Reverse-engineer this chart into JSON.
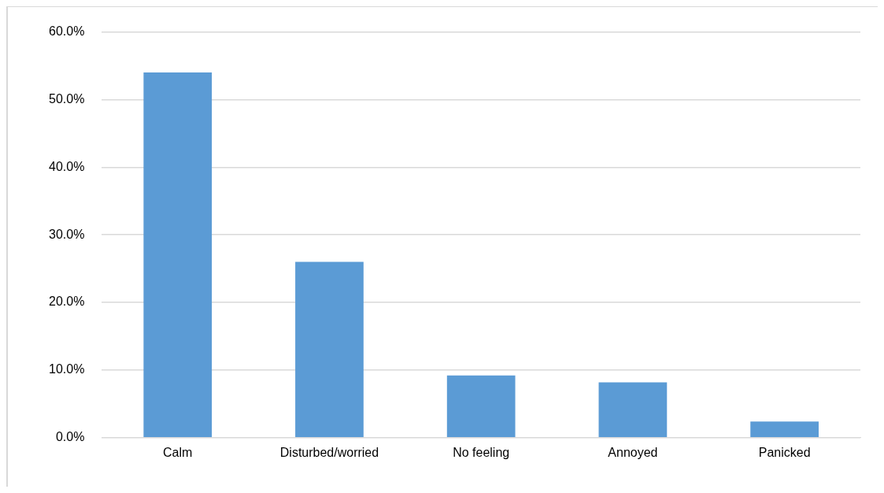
{
  "chart_data": {
    "type": "bar",
    "categories": [
      "Calm",
      "Disturbed/worried",
      "No feeling",
      "Annoyed",
      "Panicked"
    ],
    "values": [
      54.0,
      26.0,
      9.2,
      8.2,
      2.4
    ],
    "color": "#5b9bd5",
    "ylim": [
      0,
      60
    ],
    "yticks": [
      {
        "value": 0,
        "label": "0.0%"
      },
      {
        "value": 10,
        "label": "10.0%"
      },
      {
        "value": 20,
        "label": "20.0%"
      },
      {
        "value": 30,
        "label": "30.0%"
      },
      {
        "value": 40,
        "label": "40.0%"
      },
      {
        "value": 50,
        "label": "50.0%"
      },
      {
        "value": 60,
        "label": "60.0%"
      }
    ],
    "grid": "y",
    "legend": false
  }
}
